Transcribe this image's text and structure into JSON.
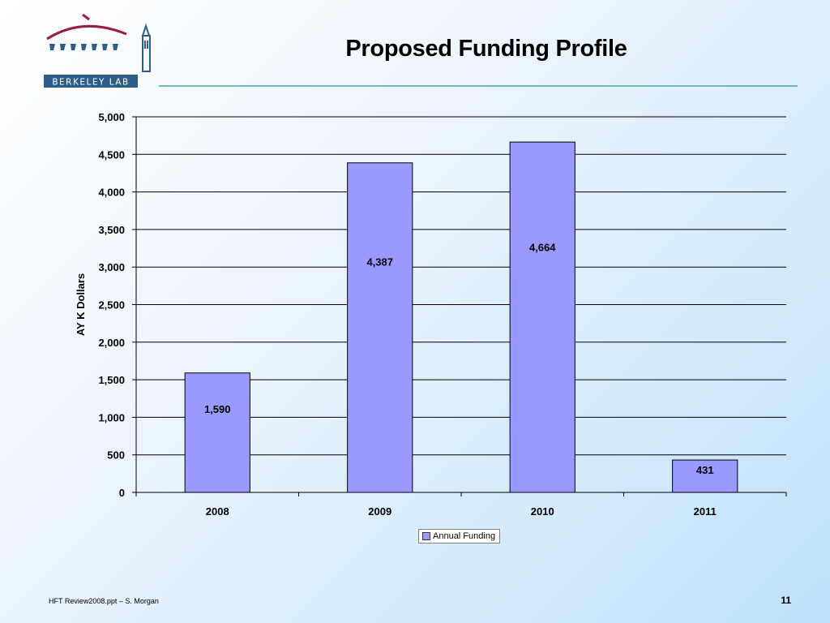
{
  "header": {
    "title": "Proposed Funding Profile",
    "logo_text": "BERKELEY LAB"
  },
  "footer": {
    "left_text": "HFT Review2008.ppt – S. Morgan",
    "page_number": "11"
  },
  "colors": {
    "bar_fill": "#9999ff",
    "gridline": "#000000",
    "logo_arc": "#9b1d3a",
    "logo_text_bg": "#2b5f8a",
    "rule": "#6fb7c4"
  },
  "chart_data": {
    "type": "bar",
    "title": "",
    "xlabel": "",
    "ylabel": "AY K Dollars",
    "categories": [
      "2008",
      "2009",
      "2010",
      "2011"
    ],
    "series": [
      {
        "name": "Annual Funding",
        "values": [
          1590,
          4387,
          4664,
          431
        ]
      }
    ],
    "data_labels": [
      "1,590",
      "4,387",
      "4,664",
      "431"
    ],
    "ylim": [
      0,
      5000
    ],
    "yticks": [
      0,
      500,
      1000,
      1500,
      2000,
      2500,
      3000,
      3500,
      4000,
      4500,
      5000
    ],
    "ytick_labels": [
      "0",
      "500",
      "1,000",
      "1,500",
      "2,000",
      "2,500",
      "3,000",
      "3,500",
      "4,000",
      "4,500",
      "5,000"
    ],
    "grid": true,
    "legend_position": "bottom"
  }
}
